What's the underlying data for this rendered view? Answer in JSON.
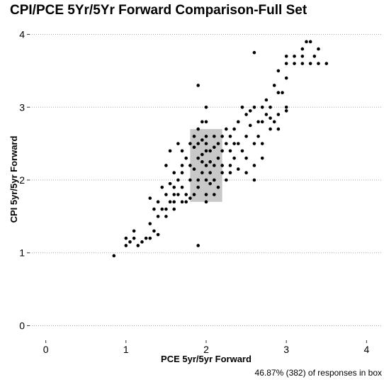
{
  "chart_data": {
    "type": "scatter",
    "title": "CPI/PCE 5Yr/5Yr Forward Comparison-Full Set",
    "x_label": "PCE 5yr/5yr Forward",
    "y_label": "CPI 5yr/5yr Forward",
    "note": "46.87% (382) of responses in box",
    "color": "#000000",
    "box_color": "#c8c8c8",
    "box_xlim": [
      1.8,
      2.2
    ],
    "box_ylim": [
      1.7,
      2.7
    ],
    "xlim": [
      -0.2,
      4.2
    ],
    "ylim": [
      -0.2,
      4.2
    ],
    "xticks": [
      0,
      1,
      2,
      3,
      4
    ],
    "yticks": [
      0,
      1,
      2,
      3,
      4
    ],
    "grid": true,
    "x": [
      0.85,
      1.0,
      1.0,
      1.05,
      1.1,
      1.1,
      1.15,
      1.2,
      1.25,
      1.3,
      1.35,
      1.4,
      1.3,
      1.35,
      1.4,
      1.45,
      1.5,
      1.5,
      1.55,
      1.6,
      1.6,
      1.3,
      1.4,
      1.5,
      1.6,
      1.65,
      1.7,
      1.7,
      1.75,
      1.75,
      1.6,
      1.6,
      1.65,
      1.7,
      1.7,
      1.75,
      1.7,
      1.8,
      1.8,
      1.8,
      1.85,
      1.85,
      1.9,
      1.9,
      1.9,
      1.9,
      1.95,
      2.0,
      2.0,
      2.0,
      2.0,
      2.0,
      2.0,
      2.0,
      1.9,
      1.9,
      1.95,
      1.95,
      2.05,
      2.05,
      2.05,
      2.1,
      2.1,
      2.1,
      2.1,
      2.15,
      2.15,
      2.2,
      2.2,
      2.2,
      2.25,
      2.25,
      2.3,
      2.3,
      2.3,
      2.35,
      2.35,
      2.4,
      2.4,
      2.45,
      2.45,
      2.5,
      2.5,
      2.5,
      2.55,
      2.6,
      2.6,
      2.6,
      2.6,
      2.65,
      2.65,
      2.7,
      2.7,
      2.7,
      2.75,
      2.8,
      2.8,
      2.85,
      2.9,
      2.9,
      2.9,
      2.95,
      3.0,
      3.0,
      2.6,
      2.85,
      2.9,
      3.0,
      3.0,
      3.1,
      3.1,
      3.0,
      3.2,
      3.2,
      3.2,
      3.25,
      3.3,
      3.3,
      3.35,
      3.4,
      3.4,
      3.5,
      2.5,
      2.4,
      2.35,
      1.5,
      1.55,
      1.45,
      1.55,
      1.65,
      2.0,
      2.0,
      1.95,
      1.85,
      1.85,
      1.9,
      2.1,
      1.95,
      2.05,
      2.15,
      2.2,
      2.25,
      2.3,
      1.8,
      2.7,
      2.75,
      2.8,
      2.55
    ],
    "values": [
      0.96,
      1.1,
      1.2,
      1.15,
      1.2,
      1.3,
      1.1,
      1.15,
      1.2,
      1.2,
      1.3,
      1.25,
      1.4,
      1.6,
      1.5,
      1.6,
      1.5,
      1.6,
      1.7,
      1.6,
      1.7,
      1.75,
      1.7,
      1.8,
      1.8,
      1.8,
      1.7,
      1.9,
      1.7,
      1.8,
      1.9,
      2.1,
      2.0,
      2.1,
      2.2,
      2.3,
      2.4,
      2.0,
      2.2,
      2.5,
      2.6,
      1.8,
      1.1,
      3.3,
      2.5,
      2.7,
      2.8,
      3.0,
      2.8,
      2.5,
      2.2,
      2.0,
      1.8,
      1.7,
      2.3,
      2.0,
      2.1,
      2.35,
      2.25,
      2.4,
      1.95,
      2.2,
      2.6,
      2.0,
      1.8,
      2.3,
      2.5,
      2.1,
      2.4,
      2.6,
      2.5,
      2.0,
      2.2,
      2.4,
      2.6,
      2.5,
      2.7,
      2.5,
      2.8,
      3.0,
      2.4,
      2.3,
      2.6,
      2.9,
      2.95,
      2.0,
      2.2,
      2.5,
      3.0,
      2.6,
      2.8,
      2.3,
      2.8,
      3.0,
      2.9,
      2.7,
      3.0,
      2.8,
      2.7,
      2.9,
      3.2,
      3.2,
      3.0,
      2.95,
      3.75,
      3.3,
      3.5,
      3.6,
      3.7,
      3.7,
      3.6,
      3.4,
      3.6,
      3.7,
      3.8,
      3.9,
      3.6,
      3.9,
      3.7,
      3.6,
      3.8,
      3.6,
      2.1,
      2.15,
      2.3,
      2.2,
      1.95,
      1.9,
      2.4,
      2.5,
      2.4,
      2.6,
      2.55,
      2.15,
      2.45,
      1.9,
      2.45,
      2.25,
      2.1,
      1.9,
      2.2,
      2.7,
      2.1,
      1.75,
      2.5,
      3.1,
      2.85,
      2.75
    ]
  }
}
